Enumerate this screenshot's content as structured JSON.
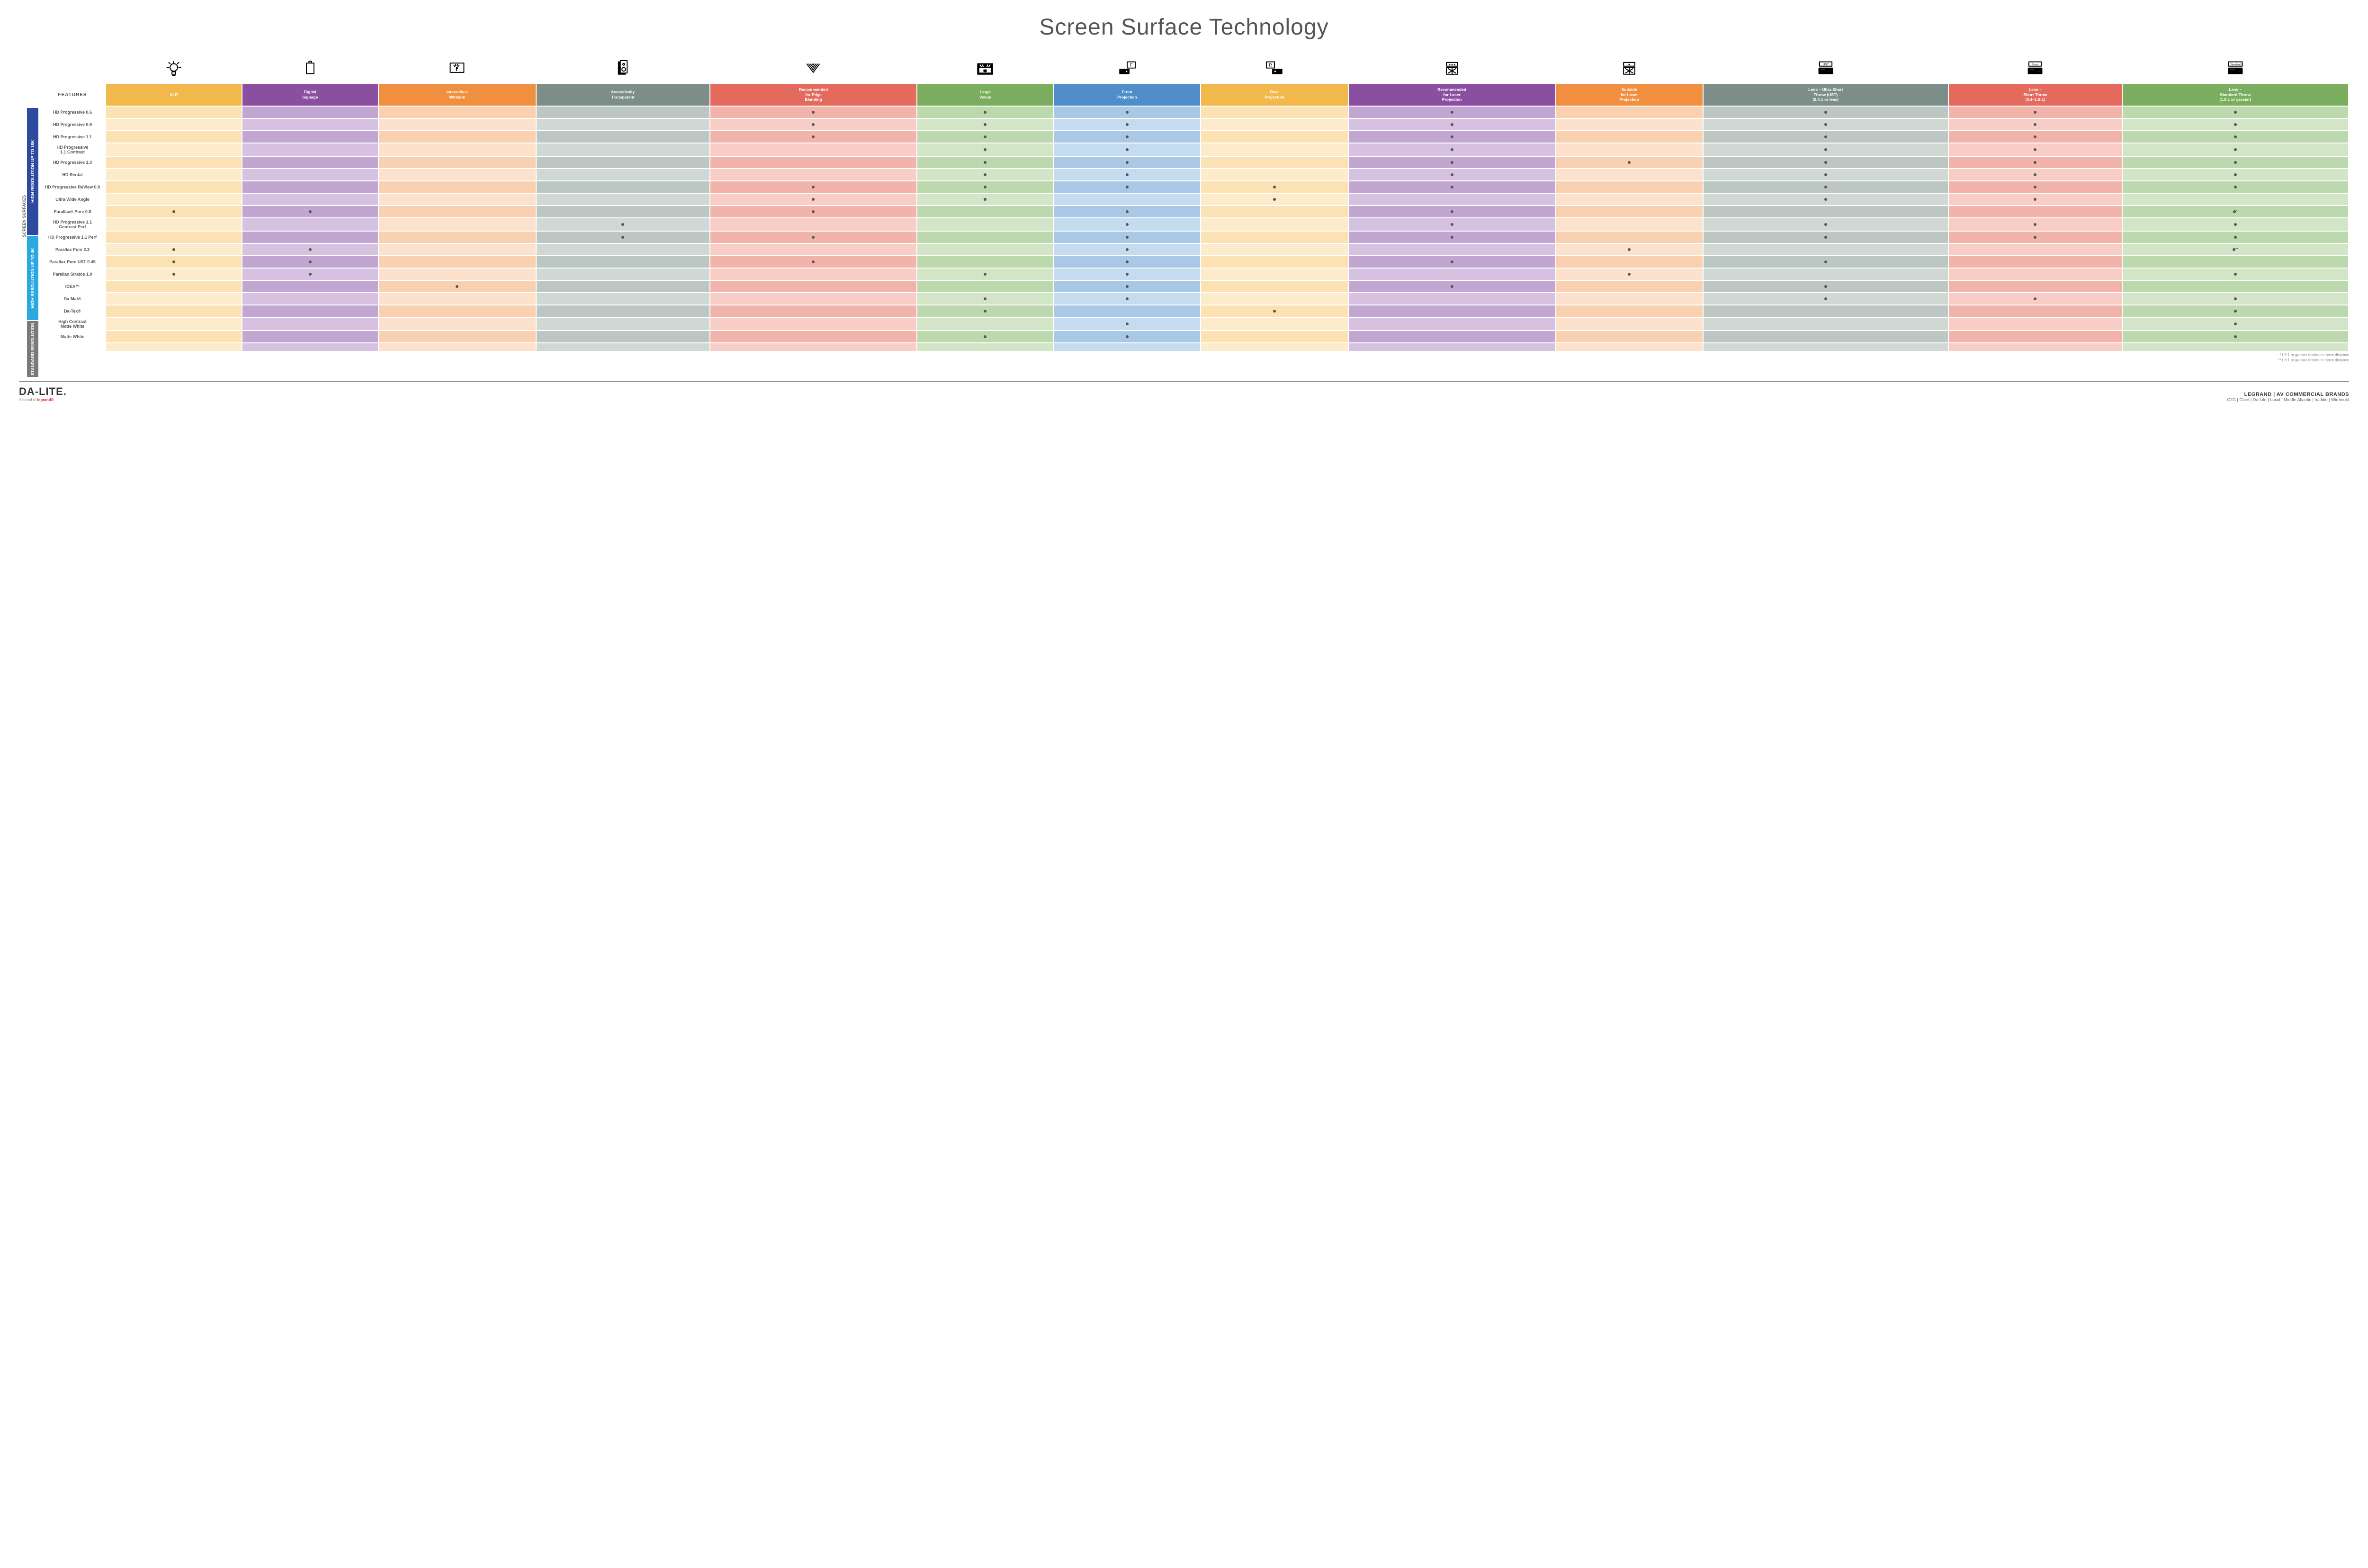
{
  "title": "Screen Surface Technology",
  "axis_label": "SCREEN SURFACES",
  "features_label": "FEATURES",
  "columns": [
    {
      "id": "alr",
      "label": "ALR",
      "color": "#f2b84b",
      "tint": "#fce2b3",
      "tint2": "#fdeccc"
    },
    {
      "id": "signage",
      "label": "Digital\nSignage",
      "color": "#8a4fa0",
      "tint": "#c2a6d2",
      "tint2": "#d6c2e0"
    },
    {
      "id": "writable",
      "label": "Interactive/\nWritable",
      "color": "#ef8f3f",
      "tint": "#f9d1b0",
      "tint2": "#fce2cc"
    },
    {
      "id": "acoustic",
      "label": "Acoustically\nTransparent",
      "color": "#7d8e88",
      "tint": "#bcc6c2",
      "tint2": "#d0d8d4"
    },
    {
      "id": "edge",
      "label": "Recommended\nfor Edge\nBlending",
      "color": "#e36a5c",
      "tint": "#f2b3ab",
      "tint2": "#f7cdc6"
    },
    {
      "id": "venue",
      "label": "Large\nVenue",
      "color": "#7aae5e",
      "tint": "#bcd8ad",
      "tint2": "#d2e5c7"
    },
    {
      "id": "front",
      "label": "Front\nProjection",
      "color": "#4f8ec9",
      "tint": "#a9c8e5",
      "tint2": "#c5dbef"
    },
    {
      "id": "rear",
      "label": "Rear\nProjection",
      "color": "#f2b84b",
      "tint": "#fce2b3",
      "tint2": "#fdeccc"
    },
    {
      "id": "reclaser",
      "label": "Recommended\nfor Laser\nProjection",
      "color": "#8a4fa0",
      "tint": "#c2a6d2",
      "tint2": "#d6c2e0"
    },
    {
      "id": "suitlaser",
      "label": "Suitable\nfor Laser\nProjection",
      "color": "#ef8f3f",
      "tint": "#f9d1b0",
      "tint2": "#fce2cc"
    },
    {
      "id": "ust",
      "label": "Lens – Ultra Short\nThrow (UST)\n(0.4:1 or less)",
      "color": "#7d8e88",
      "tint": "#bcc6c2",
      "tint2": "#d0d8d4"
    },
    {
      "id": "short",
      "label": "Lens –\nShort Throw\n(0.4–1.0:1)",
      "color": "#e36a5c",
      "tint": "#f2b3ab",
      "tint2": "#f7cdc6"
    },
    {
      "id": "std",
      "label": "Lens –\nStandard Throw\n(1.0:1 or greater)",
      "color": "#7aae5e",
      "tint": "#bcd8ad",
      "tint2": "#d2e5c7"
    }
  ],
  "row_groups": [
    {
      "id": "16k",
      "label": "HIGH RESOLUTION UP TO 16K",
      "color": "#2e4a9e",
      "rows": [
        "HD Progressive 0.6",
        "HD Progressive 0.9",
        "HD Progressive 1.1",
        "HD Progressive\n1.1 Contrast",
        "HD Progressive 1.3",
        "HD Rental",
        "HD Progressive ReView 0.9",
        "Ultra Wide Angle",
        "Parallax® Pure 0.8"
      ]
    },
    {
      "id": "4k",
      "label": "HIGH RESOLUTION UP TO 4K",
      "color": "#2aa9e0",
      "rows": [
        "HD Progressive 1.1\nContrast Perf",
        "HD Progressive 1.1 Perf",
        "Parallax Pure 2.3",
        "Parallax Pure UST 0.45",
        "Parallax Stratos 1.0",
        "IDEA™"
      ]
    },
    {
      "id": "std",
      "label": "STANDARD\nRESOLUTION",
      "color": "#7a7a7a",
      "rows": [
        "Da-Mat®",
        "Da-Tex®",
        "High Contrast\nMatte White",
        "Matte White"
      ]
    }
  ],
  "matrix": [
    [
      "",
      "",
      "",
      "",
      "•",
      "•",
      "•",
      "",
      "•",
      "",
      "•",
      "•",
      "•"
    ],
    [
      "",
      "",
      "",
      "",
      "•",
      "•",
      "•",
      "",
      "•",
      "",
      "•",
      "•",
      "•"
    ],
    [
      "",
      "",
      "",
      "",
      "•",
      "•",
      "•",
      "",
      "•",
      "",
      "•",
      "•",
      "•"
    ],
    [
      "",
      "",
      "",
      "",
      "",
      "•",
      "•",
      "",
      "•",
      "",
      "•",
      "•",
      "•"
    ],
    [
      "",
      "",
      "",
      "",
      "",
      "•",
      "•",
      "",
      "•",
      "•",
      "•",
      "•",
      "•"
    ],
    [
      "",
      "",
      "",
      "",
      "",
      "•",
      "•",
      "",
      "•",
      "",
      "•",
      "•",
      "•"
    ],
    [
      "",
      "",
      "",
      "",
      "•",
      "•",
      "•",
      "•",
      "•",
      "",
      "•",
      "•",
      "•"
    ],
    [
      "",
      "",
      "",
      "",
      "•",
      "•",
      "",
      "•",
      "",
      "",
      "•",
      "•",
      ""
    ],
    [
      "•",
      "•",
      "",
      "",
      "•",
      "",
      "•",
      "",
      "•",
      "",
      "",
      "",
      "•*"
    ],
    [
      "",
      "",
      "",
      "•",
      "",
      "",
      "•",
      "",
      "•",
      "",
      "•",
      "•",
      "•"
    ],
    [
      "",
      "",
      "",
      "•",
      "•",
      "",
      "•",
      "",
      "•",
      "",
      "•",
      "•",
      "•"
    ],
    [
      "•",
      "•",
      "",
      "",
      "",
      "",
      "•",
      "",
      "",
      "•",
      "",
      "",
      "•**"
    ],
    [
      "•",
      "•",
      "",
      "",
      "•",
      "",
      "•",
      "",
      "•",
      "",
      "•",
      "",
      ""
    ],
    [
      "•",
      "•",
      "",
      "",
      "",
      "•",
      "•",
      "",
      "",
      "•",
      "",
      "",
      "•"
    ],
    [
      "",
      "",
      "•",
      "",
      "",
      "",
      "•",
      "",
      "•",
      "",
      "•",
      "",
      ""
    ],
    [
      "",
      "",
      "",
      "",
      "",
      "•",
      "•",
      "",
      "",
      "",
      "•",
      "•",
      "•"
    ],
    [
      "",
      "",
      "",
      "",
      "",
      "•",
      "",
      "•",
      "",
      "",
      "",
      "",
      "•"
    ],
    [
      "",
      "",
      "",
      "",
      "",
      "",
      "•",
      "",
      "",
      "",
      "",
      "",
      "•"
    ],
    [
      "",
      "",
      "",
      "",
      "",
      "•",
      "•",
      "",
      "",
      "",
      "",
      "",
      "•"
    ]
  ],
  "footnotes": [
    "*1.5:1 or greater minimum throw distance",
    "**1.8:1 or greater minimum throw distance"
  ],
  "footer": {
    "brand_main": "DA-LITE.",
    "brand_sub_prefix": "A brand of ",
    "brand_sub_accent": "legrand®",
    "legrand_title": "LEGRAND | AV COMMERCIAL BRANDS",
    "legrand_list": "C2G  |  Chief  |  Da-Lite  |  Luxul  |  Middle Atlantic  |  Vaddio  |  Wiremold"
  },
  "icons": {
    "alr": "bulb",
    "signage": "panel",
    "writable": "touch",
    "acoustic": "speaker",
    "edge": "wedge",
    "venue": "stage",
    "front": "proj-f",
    "rear": "proj-r",
    "reclaser": "laser3",
    "suitlaser": "laser1",
    "ust": "lens-ust",
    "short": "lens-short",
    "std": "lens-std"
  }
}
